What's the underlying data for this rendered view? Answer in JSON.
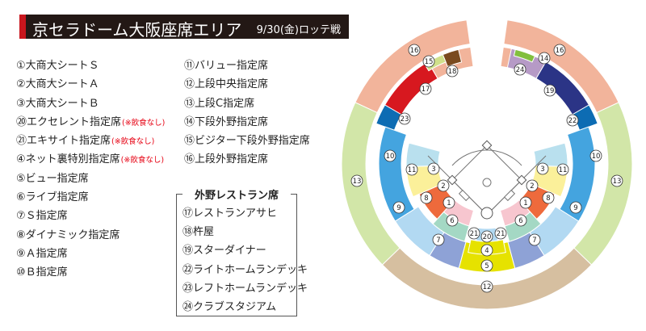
{
  "header": {
    "title": "京セラドーム大阪座席エリア",
    "date": "9/30(金)ロッテ戦"
  },
  "legend_col1": [
    {
      "label": "①大商大シートＳ",
      "note": ""
    },
    {
      "label": "②大商大シートＡ",
      "note": ""
    },
    {
      "label": "③大商大シートＢ",
      "note": ""
    },
    {
      "label": "⑳エクセレント指定席",
      "note": "(※飲食なし)"
    },
    {
      "label": "㉑エキサイト指定席",
      "note": "(※飲食なし)"
    },
    {
      "label": "④ネット裏特別指定席",
      "note": "(※飲食なし)"
    },
    {
      "label": "⑤ビュー指定席",
      "note": ""
    },
    {
      "label": "⑥ライブ指定席",
      "note": ""
    },
    {
      "label": "⑦Ｓ指定席",
      "note": ""
    },
    {
      "label": "⑧ダイナミック指定席",
      "note": ""
    },
    {
      "label": "⑨Ａ指定席",
      "note": ""
    },
    {
      "label": "⑩Ｂ指定席",
      "note": ""
    }
  ],
  "legend_col2": [
    {
      "label": "⑪バリュー指定席"
    },
    {
      "label": "⑫上段中央指定席"
    },
    {
      "label": "⑬上段C指定席"
    },
    {
      "label": "⑭下段外野指定席"
    },
    {
      "label": "⑮ビジター下段外野指定席"
    },
    {
      "label": "⑯上段外野指定席"
    }
  ],
  "restaurants": {
    "title": "外野レストラン席",
    "items": [
      {
        "label": "⑰レストランアサヒ"
      },
      {
        "label": "⑱杵屋"
      },
      {
        "label": "⑲スターダイナー"
      },
      {
        "label": "㉒ライトホームランデッキ"
      },
      {
        "label": "㉓レフトホームランデッキ"
      },
      {
        "label": "㉔クラブスタジアム"
      }
    ]
  },
  "stadium_labels": {
    "n1": "1",
    "n2": "2",
    "n3": "3",
    "n4": "4",
    "n5": "5",
    "n6": "6",
    "n7": "7",
    "n8": "8",
    "n9": "9",
    "n10": "10",
    "n11": "11",
    "n12": "12",
    "n13": "13",
    "n14": "14",
    "n15": "15",
    "n16": "16",
    "n17": "17",
    "n18": "18",
    "n19": "19",
    "n20": "20",
    "n21": "21",
    "n22": "22",
    "n23": "23",
    "n24": "24"
  },
  "colors": {
    "upper_outfield": "#f2b49b",
    "upper_c": "#d2e6a8",
    "upper_center": "#d6bfa0",
    "b_reserved": "#44a4df",
    "a_reserved": "#b2d9f2",
    "s_reserved": "#8ea2d6",
    "dynamic": "#ee6a3c",
    "value": "#fbf09a",
    "view": "#e6e200",
    "live": "#a4d8c4",
    "daisho_s": "#f7c6cf",
    "daisho_a": "#ffe6ee",
    "daisho_b": "#b9e0ee",
    "lower_outfield": "#b69ac6",
    "visitor": "#d0e08a",
    "asahi": "#d7181f",
    "kineya": "#7a4a1f",
    "star_diner": "#2b3486",
    "deck": "#0d6cb3",
    "club": "#82bf3f"
  }
}
